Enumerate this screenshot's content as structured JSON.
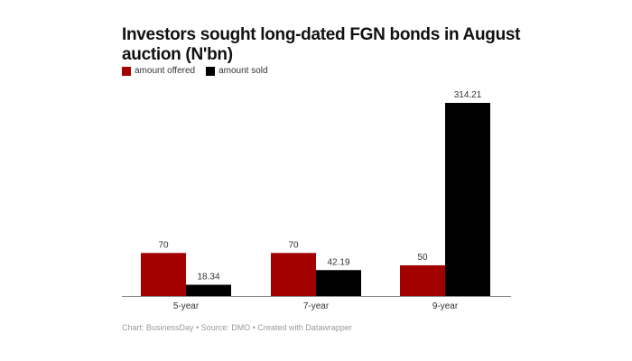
{
  "chart_data": {
    "type": "bar",
    "title": "Investors sought long-dated FGN bonds in August auction (N'bn)",
    "categories": [
      "5-year",
      "7-year",
      "9-year"
    ],
    "series": [
      {
        "name": "amount offered",
        "color": "#a30000",
        "values": [
          70,
          70,
          50
        ],
        "labels": [
          "70",
          "70",
          "50"
        ]
      },
      {
        "name": "amount sold",
        "color": "#000000",
        "values": [
          18.34,
          42.19,
          314.21
        ],
        "labels": [
          "18.34",
          "42.19",
          "314.21"
        ]
      }
    ],
    "ylim": [
      0,
      314.21
    ],
    "grid": false,
    "legend": "top-left"
  },
  "footer": "Chart: BusinessDay • Source: DMO • Created with Datawrapper"
}
